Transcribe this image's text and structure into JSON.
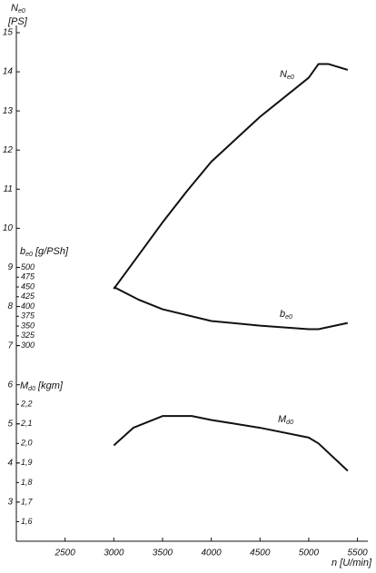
{
  "chart_data": {
    "type": "line",
    "y_label": "Ne0",
    "y_unit": "[PS]",
    "y2_label": "be0 [g/PSh]",
    "y3_label": "Md0 [kgm]",
    "x_label": "n [U/min]",
    "xlim": [
      2000,
      5500
    ],
    "xticks": [
      2500,
      3000,
      3500,
      4000,
      4500,
      5000,
      5500
    ],
    "ylim": [
      2,
      15
    ],
    "yticks": [
      3,
      4,
      5,
      6,
      7,
      8,
      9,
      10,
      11,
      12,
      13,
      14,
      15
    ],
    "y2lim": [
      -200,
      1100
    ],
    "y2ticks": [
      300,
      325,
      350,
      375,
      400,
      425,
      450,
      475,
      500
    ],
    "y3lim": [
      1.5,
      4.1
    ],
    "y3ticks": [
      {
        "value": 1.6,
        "label": "1,6"
      },
      {
        "value": 1.7,
        "label": "1,7"
      },
      {
        "value": 1.8,
        "label": "1,8"
      },
      {
        "value": 1.9,
        "label": "1,9"
      },
      {
        "value": 2.0,
        "label": "2,0"
      },
      {
        "value": 2.1,
        "label": "2,1"
      },
      {
        "value": 2.2,
        "label": "2,2"
      }
    ],
    "series": [
      {
        "name": "Ne0",
        "axis": "y",
        "color": "#111111",
        "x": [
          3000,
          3250,
          3500,
          3750,
          4000,
          4500,
          5000,
          5100,
          5200,
          5400
        ],
        "values": [
          8.45,
          9.3,
          10.15,
          10.95,
          11.7,
          12.85,
          13.85,
          14.2,
          14.2,
          14.05
        ]
      },
      {
        "name": "be0",
        "axis": "y2",
        "color": "#111111",
        "x": [
          3000,
          3250,
          3500,
          4000,
          4500,
          5000,
          5100,
          5400
        ],
        "values": [
          450,
          418,
          393,
          363,
          351,
          342,
          342,
          358
        ]
      },
      {
        "name": "Md0",
        "axis": "y3",
        "color": "#111111",
        "x": [
          3000,
          3200,
          3500,
          3800,
          4000,
          4500,
          5000,
          5100,
          5400
        ],
        "values": [
          1.99,
          2.08,
          2.14,
          2.14,
          2.12,
          2.08,
          2.03,
          2.0,
          1.86
        ]
      }
    ]
  }
}
